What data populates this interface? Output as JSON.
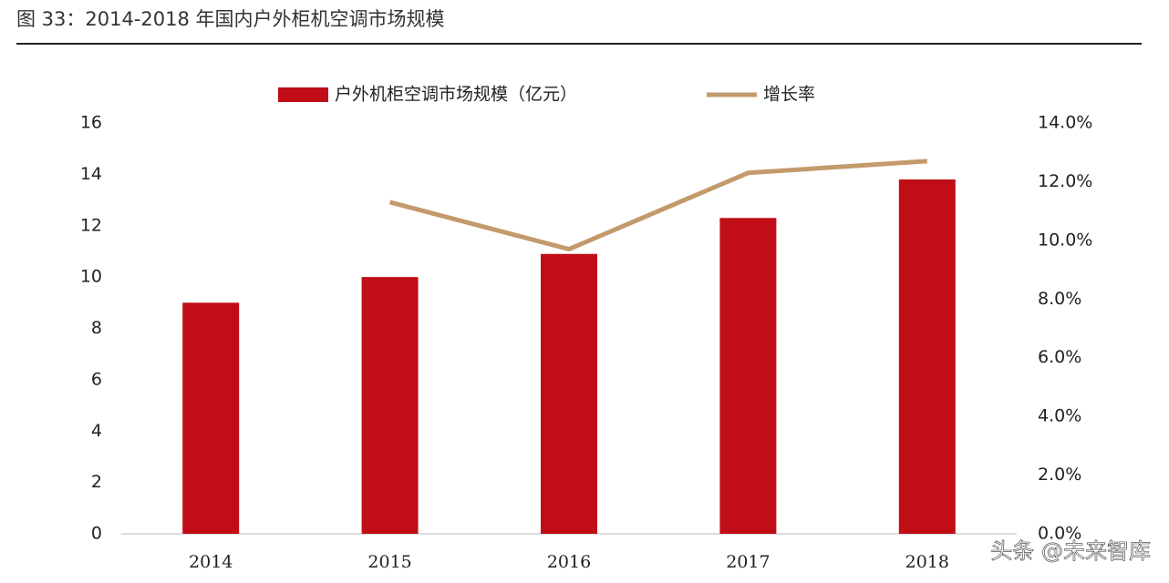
{
  "chart_data": {
    "type": "bar-line",
    "title": "图 33：2014-2018 年国内户外柜机空调市场规模",
    "watermark": "头条 @未来智库",
    "categories": [
      "2014",
      "2015",
      "2016",
      "2017",
      "2018"
    ],
    "series": [
      {
        "name": "户外机柜空调市场规模（亿元）",
        "color": "#c00d16",
        "type": "bar",
        "values": [
          9.0,
          10.0,
          10.9,
          12.3,
          13.8
        ]
      },
      {
        "name": "增长率",
        "color": "#c49a6c",
        "type": "line",
        "axis": "y2",
        "values": [
          null,
          11.3,
          9.7,
          12.3,
          12.7
        ]
      }
    ],
    "ylim": [
      0,
      16
    ],
    "yticks": [
      0,
      2,
      4,
      6,
      8,
      10,
      12,
      14,
      16
    ],
    "y2lim": [
      0,
      14
    ],
    "y2ticks": [
      {
        "value": 0,
        "label": "0.0%"
      },
      {
        "value": 2,
        "label": "2.0%"
      },
      {
        "value": 4,
        "label": "4.0%"
      },
      {
        "value": 6,
        "label": "6.0%"
      },
      {
        "value": 8,
        "label": "8.0%"
      },
      {
        "value": 10,
        "label": "10.0%"
      },
      {
        "value": 12,
        "label": "12.0%"
      },
      {
        "value": 14,
        "label": "14.0%"
      }
    ],
    "legend": "top"
  }
}
